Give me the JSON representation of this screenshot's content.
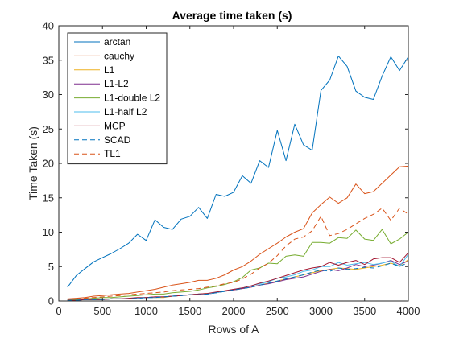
{
  "chart_data": {
    "type": "line",
    "title": "Average time taken (s)",
    "xlabel": "Rows of A",
    "ylabel": "Time Taken (s)",
    "xlim": [
      0,
      4000
    ],
    "ylim": [
      0,
      40
    ],
    "xticks": [
      0,
      500,
      1000,
      1500,
      2000,
      2500,
      3000,
      3500,
      4000
    ],
    "yticks": [
      0,
      5,
      10,
      15,
      20,
      25,
      30,
      35,
      40
    ],
    "grid": false,
    "legend_position": "top-left",
    "x": [
      100,
      200,
      300,
      400,
      500,
      600,
      700,
      800,
      900,
      1000,
      1100,
      1200,
      1300,
      1400,
      1500,
      1600,
      1700,
      1800,
      1900,
      2000,
      2100,
      2200,
      2300,
      2400,
      2500,
      2600,
      2700,
      2800,
      2900,
      3000,
      3100,
      3200,
      3300,
      3400,
      3500,
      3600,
      3700,
      3800,
      3900,
      4000
    ],
    "series": [
      {
        "name": "arctan",
        "color": "#0072bd",
        "dash": "solid",
        "values": [
          2.0,
          3.7,
          4.7,
          5.7,
          6.3,
          6.9,
          7.6,
          8.4,
          9.7,
          8.8,
          11.8,
          10.7,
          10.4,
          11.9,
          12.3,
          13.6,
          12.0,
          15.5,
          15.2,
          15.8,
          18.2,
          17.1,
          20.4,
          19.4,
          24.8,
          20.4,
          25.7,
          22.7,
          21.9,
          30.6,
          32.1,
          35.6,
          34.1,
          30.5,
          29.6,
          29.3,
          32.7,
          35.5,
          33.5,
          35.5
        ]
      },
      {
        "name": "cauchy",
        "color": "#d95319",
        "dash": "solid",
        "values": [
          0.3,
          0.4,
          0.5,
          0.7,
          0.8,
          0.9,
          1.0,
          1.1,
          1.3,
          1.5,
          1.7,
          2.0,
          2.3,
          2.5,
          2.7,
          3.0,
          3.0,
          3.3,
          3.8,
          4.5,
          5.0,
          5.8,
          6.8,
          7.6,
          8.4,
          9.3,
          10.0,
          10.5,
          12.8,
          14.0,
          15.1,
          14.2,
          15.0,
          17.0,
          15.6,
          15.9,
          17.1,
          18.3,
          19.5,
          19.6
        ]
      },
      {
        "name": "L1",
        "color": "#edb120",
        "dash": "solid",
        "values": [
          0.1,
          0.1,
          0.2,
          0.2,
          0.2,
          0.3,
          0.3,
          0.3,
          0.4,
          0.5,
          0.5,
          0.5,
          0.7,
          0.8,
          0.9,
          1.0,
          1.1,
          1.2,
          1.4,
          1.6,
          1.8,
          2.0,
          2.3,
          2.6,
          2.9,
          3.2,
          3.5,
          3.8,
          4.1,
          4.4,
          4.6,
          4.8,
          4.7,
          4.6,
          4.8,
          5.0,
          5.2,
          5.5,
          5.1,
          6.0
        ]
      },
      {
        "name": "L1-L2",
        "color": "#7e2f8e",
        "dash": "solid",
        "values": [
          0.1,
          0.1,
          0.2,
          0.2,
          0.2,
          0.3,
          0.3,
          0.3,
          0.4,
          0.5,
          0.6,
          0.6,
          0.7,
          0.8,
          0.9,
          1.0,
          1.0,
          1.2,
          1.4,
          1.6,
          1.8,
          2.0,
          2.3,
          2.5,
          2.8,
          3.1,
          3.3,
          3.5,
          3.9,
          4.3,
          4.6,
          4.4,
          4.8,
          5.3,
          5.0,
          5.2,
          5.5,
          5.9,
          5.3,
          5.8
        ]
      },
      {
        "name": "L1-double L2",
        "color": "#77ac30",
        "dash": "solid",
        "values": [
          0.2,
          0.2,
          0.3,
          0.4,
          0.5,
          0.5,
          0.6,
          0.7,
          0.8,
          0.9,
          1.0,
          1.0,
          1.2,
          1.3,
          1.4,
          1.6,
          1.9,
          2.1,
          2.4,
          2.8,
          3.4,
          4.5,
          4.8,
          5.5,
          5.4,
          6.5,
          6.7,
          6.5,
          8.5,
          8.5,
          8.4,
          9.2,
          9.1,
          10.3,
          9.0,
          8.8,
          10.4,
          8.3,
          9.0,
          10.0
        ]
      },
      {
        "name": "L1-half L2",
        "color": "#4dbeee",
        "dash": "solid",
        "values": [
          0.1,
          0.1,
          0.2,
          0.2,
          0.2,
          0.3,
          0.3,
          0.3,
          0.4,
          0.5,
          0.5,
          0.6,
          0.7,
          0.8,
          0.9,
          1.0,
          1.0,
          1.2,
          1.4,
          1.7,
          1.9,
          2.2,
          2.5,
          2.8,
          3.3,
          3.5,
          3.8,
          4.3,
          4.5,
          5.0,
          5.0,
          5.6,
          5.2,
          5.4,
          5.6,
          5.3,
          5.5,
          5.8,
          5.0,
          6.8
        ]
      },
      {
        "name": "MCP",
        "color": "#a2142f",
        "dash": "solid",
        "values": [
          0.1,
          0.1,
          0.2,
          0.2,
          0.2,
          0.3,
          0.3,
          0.4,
          0.5,
          0.5,
          0.6,
          0.6,
          0.7,
          0.8,
          0.9,
          1.0,
          1.1,
          1.3,
          1.5,
          1.7,
          1.9,
          2.2,
          2.6,
          2.9,
          3.3,
          3.7,
          4.1,
          4.5,
          4.8,
          5.0,
          5.6,
          5.2,
          5.6,
          5.9,
          5.3,
          6.1,
          6.3,
          6.3,
          5.6,
          7.0
        ]
      },
      {
        "name": "SCAD",
        "color": "#0072bd",
        "dash": "dashed",
        "values": [
          0.1,
          0.1,
          0.2,
          0.2,
          0.2,
          0.3,
          0.3,
          0.3,
          0.4,
          0.5,
          0.5,
          0.6,
          0.7,
          0.8,
          0.9,
          0.9,
          1.0,
          1.2,
          1.4,
          1.6,
          1.8,
          2.0,
          2.3,
          2.6,
          2.9,
          3.2,
          3.5,
          3.8,
          4.2,
          4.5,
          4.3,
          4.8,
          4.6,
          4.7,
          4.9,
          4.8,
          5.1,
          5.5,
          5.0,
          5.6
        ]
      },
      {
        "name": "TL1",
        "color": "#d95319",
        "dash": "dashed",
        "values": [
          0.2,
          0.3,
          0.4,
          0.5,
          0.6,
          0.7,
          0.8,
          0.9,
          1.0,
          1.1,
          1.2,
          1.3,
          1.5,
          1.6,
          1.7,
          1.8,
          2.0,
          2.2,
          2.5,
          2.7,
          3.2,
          3.9,
          4.8,
          5.5,
          6.6,
          8.0,
          9.0,
          9.3,
          10.2,
          12.3,
          9.5,
          9.8,
          10.4,
          11.2,
          12.0,
          12.6,
          13.5,
          11.7,
          13.5,
          12.6
        ]
      }
    ]
  }
}
